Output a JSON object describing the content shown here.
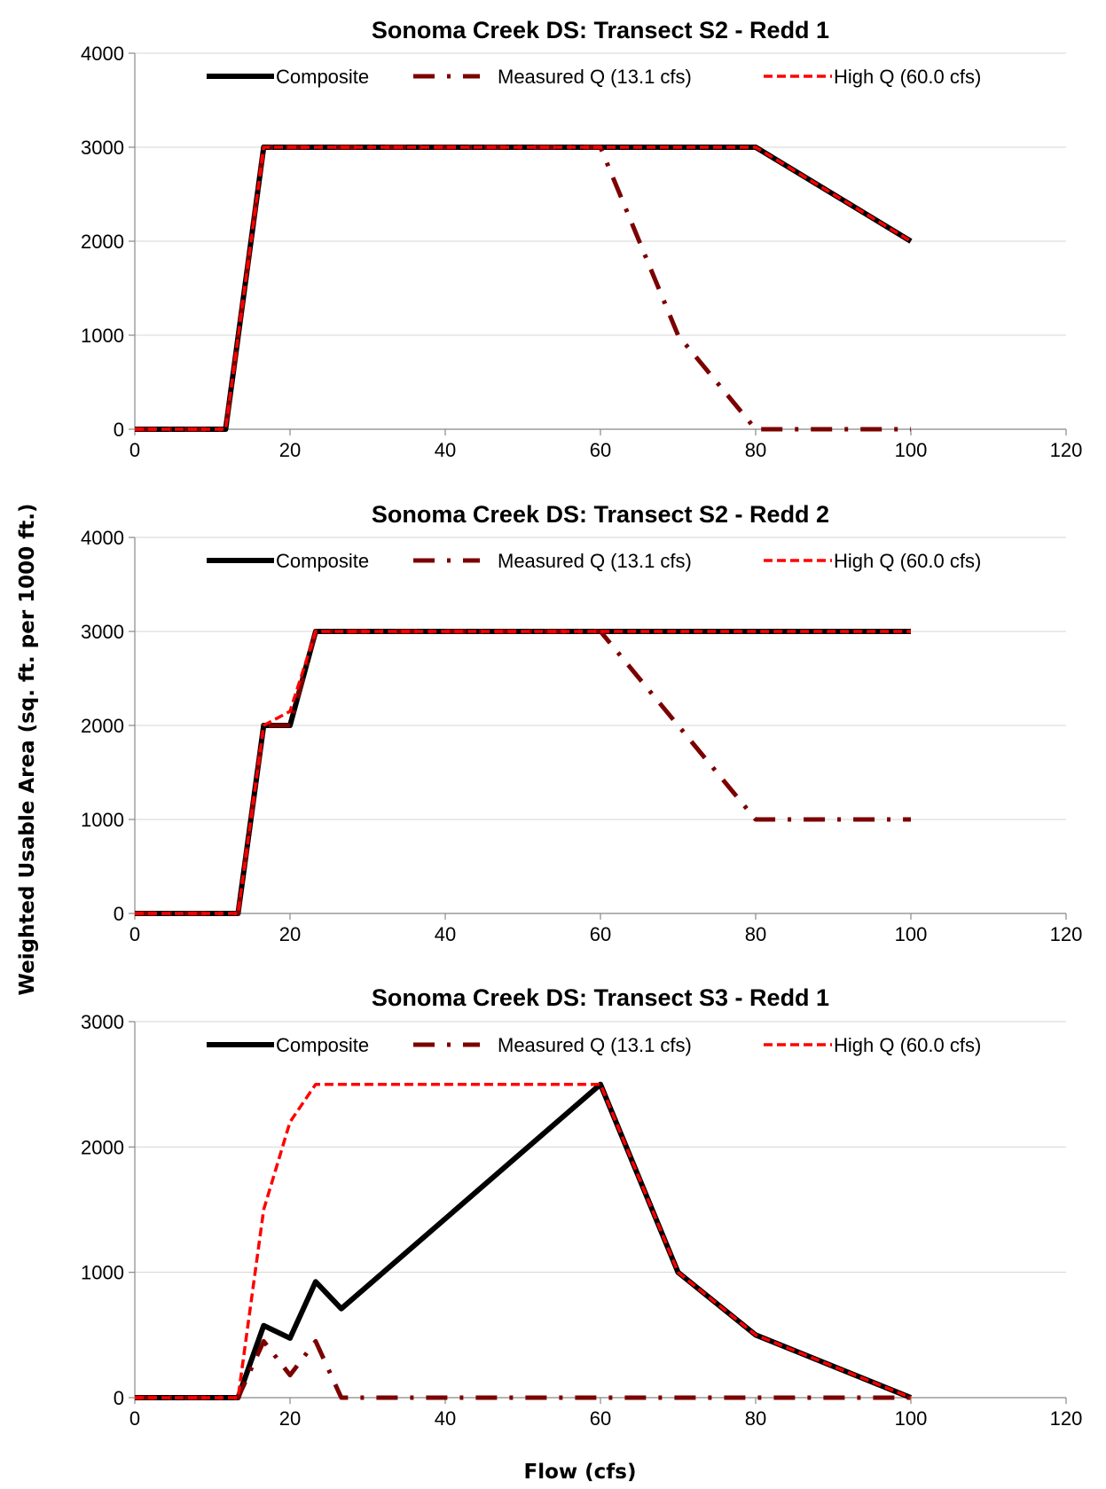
{
  "figure": {
    "ylabel": "Weighted Usable Area (sq. ft. per 1000 ft.)",
    "xlabel": "Flow (cfs)"
  },
  "chart_data": [
    {
      "type": "line",
      "title": "Sonoma Creek DS: Transect S2 - Redd 1",
      "xlim": [
        0,
        120
      ],
      "ylim": [
        0,
        4000
      ],
      "xticks": [
        0,
        20,
        40,
        60,
        80,
        100,
        120
      ],
      "yticks": [
        0,
        1000,
        2000,
        3000,
        4000
      ],
      "grid": "horizontal",
      "legend": "top",
      "series": [
        {
          "name": "Composite",
          "color": "#000000",
          "style": "solid",
          "x": [
            0,
            11.7,
            16.6,
            60,
            70,
            80,
            100
          ],
          "y": [
            0,
            0,
            3000,
            3000,
            3000,
            3000,
            2000
          ]
        },
        {
          "name": "Measured Q (13.1 cfs)",
          "color": "#7b0000",
          "style": "dashdot",
          "x": [
            0,
            11.7,
            16.6,
            60,
            70,
            80,
            100
          ],
          "y": [
            0,
            0,
            3000,
            3000,
            1000,
            0,
            0
          ]
        },
        {
          "name": "High Q (60.0 cfs)",
          "color": "#ff0000",
          "style": "dashed",
          "x": [
            0,
            11.7,
            16.6,
            60,
            70,
            80,
            100
          ],
          "y": [
            0,
            0,
            3000,
            3000,
            3000,
            3000,
            2000
          ]
        }
      ]
    },
    {
      "type": "line",
      "title": "Sonoma Creek DS: Transect S2 - Redd 2",
      "xlim": [
        0,
        120
      ],
      "ylim": [
        0,
        4000
      ],
      "xticks": [
        0,
        20,
        40,
        60,
        80,
        100,
        120
      ],
      "yticks": [
        0,
        1000,
        2000,
        3000,
        4000
      ],
      "grid": "horizontal",
      "legend": "top",
      "series": [
        {
          "name": "Composite",
          "color": "#000000",
          "style": "solid",
          "x": [
            0,
            13.3,
            16.6,
            20,
            23.3,
            60,
            70,
            80,
            100
          ],
          "y": [
            0,
            0,
            2000,
            2000,
            3000,
            3000,
            3000,
            3000,
            3000
          ]
        },
        {
          "name": "Measured Q (13.1 cfs)",
          "color": "#7b0000",
          "style": "dashdot",
          "x": [
            0,
            13.3,
            16.6,
            20,
            23.3,
            60,
            70,
            80,
            100
          ],
          "y": [
            0,
            0,
            2000,
            2000,
            3000,
            3000,
            2000,
            1000,
            1000
          ]
        },
        {
          "name": "High Q (60.0 cfs)",
          "color": "#ff0000",
          "style": "dashed",
          "x": [
            0,
            13.3,
            16.6,
            20,
            23.3,
            60,
            70,
            80,
            100
          ],
          "y": [
            0,
            0,
            2000,
            2150,
            3000,
            3000,
            3000,
            3000,
            3000
          ]
        }
      ]
    },
    {
      "type": "line",
      "title": "Sonoma Creek DS: Transect S3 - Redd 1",
      "xlim": [
        0,
        120
      ],
      "ylim": [
        0,
        3000
      ],
      "xticks": [
        0,
        20,
        40,
        60,
        80,
        100,
        120
      ],
      "yticks": [
        0,
        1000,
        2000,
        3000
      ],
      "grid": "horizontal",
      "legend": "top",
      "series": [
        {
          "name": "Composite",
          "color": "#000000",
          "style": "solid",
          "x": [
            0,
            13.3,
            16.6,
            20,
            23.3,
            26.6,
            60,
            70,
            80,
            100
          ],
          "y": [
            0,
            0,
            575,
            475,
            925,
            710,
            2500,
            1000,
            500,
            0
          ]
        },
        {
          "name": "Measured Q (13.1 cfs)",
          "color": "#7b0000",
          "style": "dashdot",
          "x": [
            0,
            13.3,
            16.6,
            20,
            23.3,
            26.6,
            60,
            70,
            80,
            100
          ],
          "y": [
            0,
            0,
            450,
            180,
            450,
            0,
            0,
            0,
            0,
            0
          ]
        },
        {
          "name": "High Q (60.0 cfs)",
          "color": "#ff0000",
          "style": "dashed",
          "x": [
            0,
            13.3,
            16.6,
            20,
            23.3,
            26.6,
            60,
            70,
            80,
            100
          ],
          "y": [
            0,
            0,
            1500,
            2200,
            2500,
            2500,
            2500,
            1000,
            500,
            0
          ]
        }
      ]
    }
  ]
}
